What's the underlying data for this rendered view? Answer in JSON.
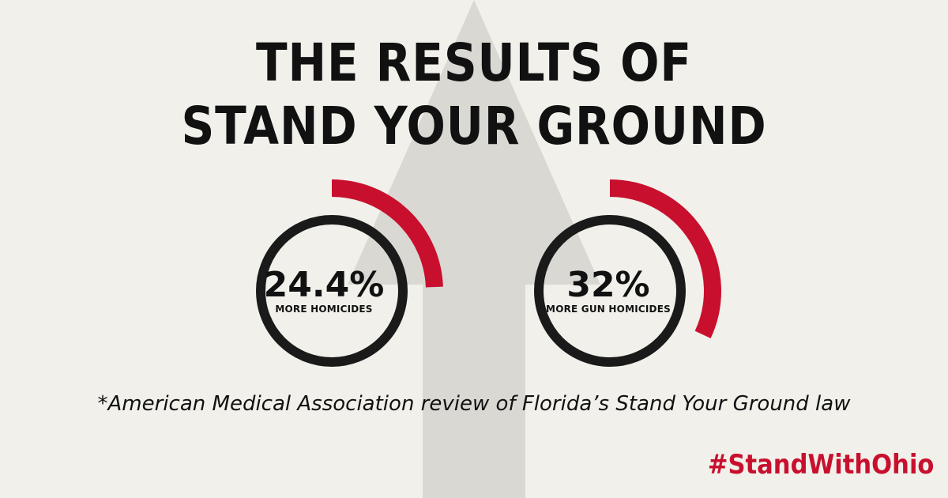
{
  "title_line1": "THE RESULTS OF",
  "title_line2": "STAND YOUR GROUND",
  "stats": [
    {
      "value": "24.4%",
      "label": "MORE HOMICIDES",
      "level_percent": 24.4
    },
    {
      "value": "32%",
      "label": "MORE GUN HOMICIDES",
      "level_percent": 32
    }
  ],
  "source": "*American Medical Association review of Florida’s Stand Your Ground law",
  "hashtag": "#StandWithOhio",
  "colors": {
    "background": "#f1f0ea",
    "accent": "#c8102e",
    "ring": "#1a1a1a",
    "arrow": "#d9d8d3"
  }
}
